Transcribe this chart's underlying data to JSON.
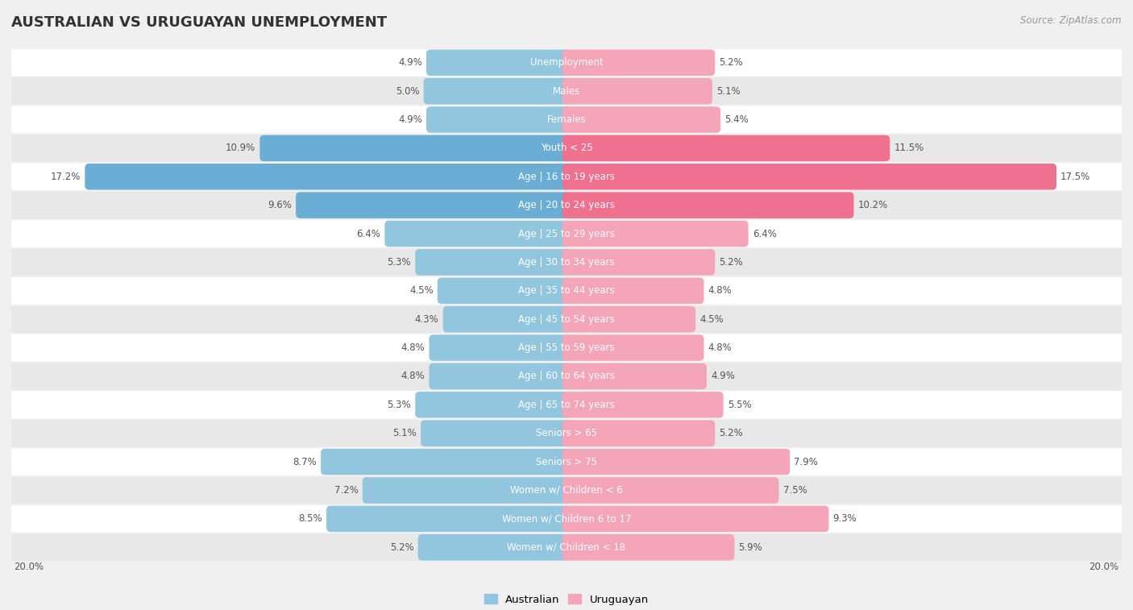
{
  "title": "AUSTRALIAN VS URUGUAYAN UNEMPLOYMENT",
  "source": "Source: ZipAtlas.com",
  "categories": [
    "Unemployment",
    "Males",
    "Females",
    "Youth < 25",
    "Age | 16 to 19 years",
    "Age | 20 to 24 years",
    "Age | 25 to 29 years",
    "Age | 30 to 34 years",
    "Age | 35 to 44 years",
    "Age | 45 to 54 years",
    "Age | 55 to 59 years",
    "Age | 60 to 64 years",
    "Age | 65 to 74 years",
    "Seniors > 65",
    "Seniors > 75",
    "Women w/ Children < 6",
    "Women w/ Children 6 to 17",
    "Women w/ Children < 18"
  ],
  "australian": [
    4.9,
    5.0,
    4.9,
    10.9,
    17.2,
    9.6,
    6.4,
    5.3,
    4.5,
    4.3,
    4.8,
    4.8,
    5.3,
    5.1,
    8.7,
    7.2,
    8.5,
    5.2
  ],
  "uruguayan": [
    5.2,
    5.1,
    5.4,
    11.5,
    17.5,
    10.2,
    6.4,
    5.2,
    4.8,
    4.5,
    4.8,
    4.9,
    5.5,
    5.2,
    7.9,
    7.5,
    9.3,
    5.9
  ],
  "australian_color": "#92c5de",
  "uruguayan_color": "#f4a6b8",
  "australian_color_highlight": "#6aaed6",
  "uruguayan_color_highlight": "#f07090",
  "bg_color": "#f0f0f0",
  "row_bg_light": "#ffffff",
  "row_bg_dark": "#e8e8e8",
  "max_value": 20.0,
  "legend_australian": "Australian",
  "legend_uruguayan": "Uruguayan",
  "axis_label": "20.0%",
  "title_fontsize": 13,
  "label_fontsize": 8.5,
  "value_fontsize": 8.5,
  "source_fontsize": 8.5
}
